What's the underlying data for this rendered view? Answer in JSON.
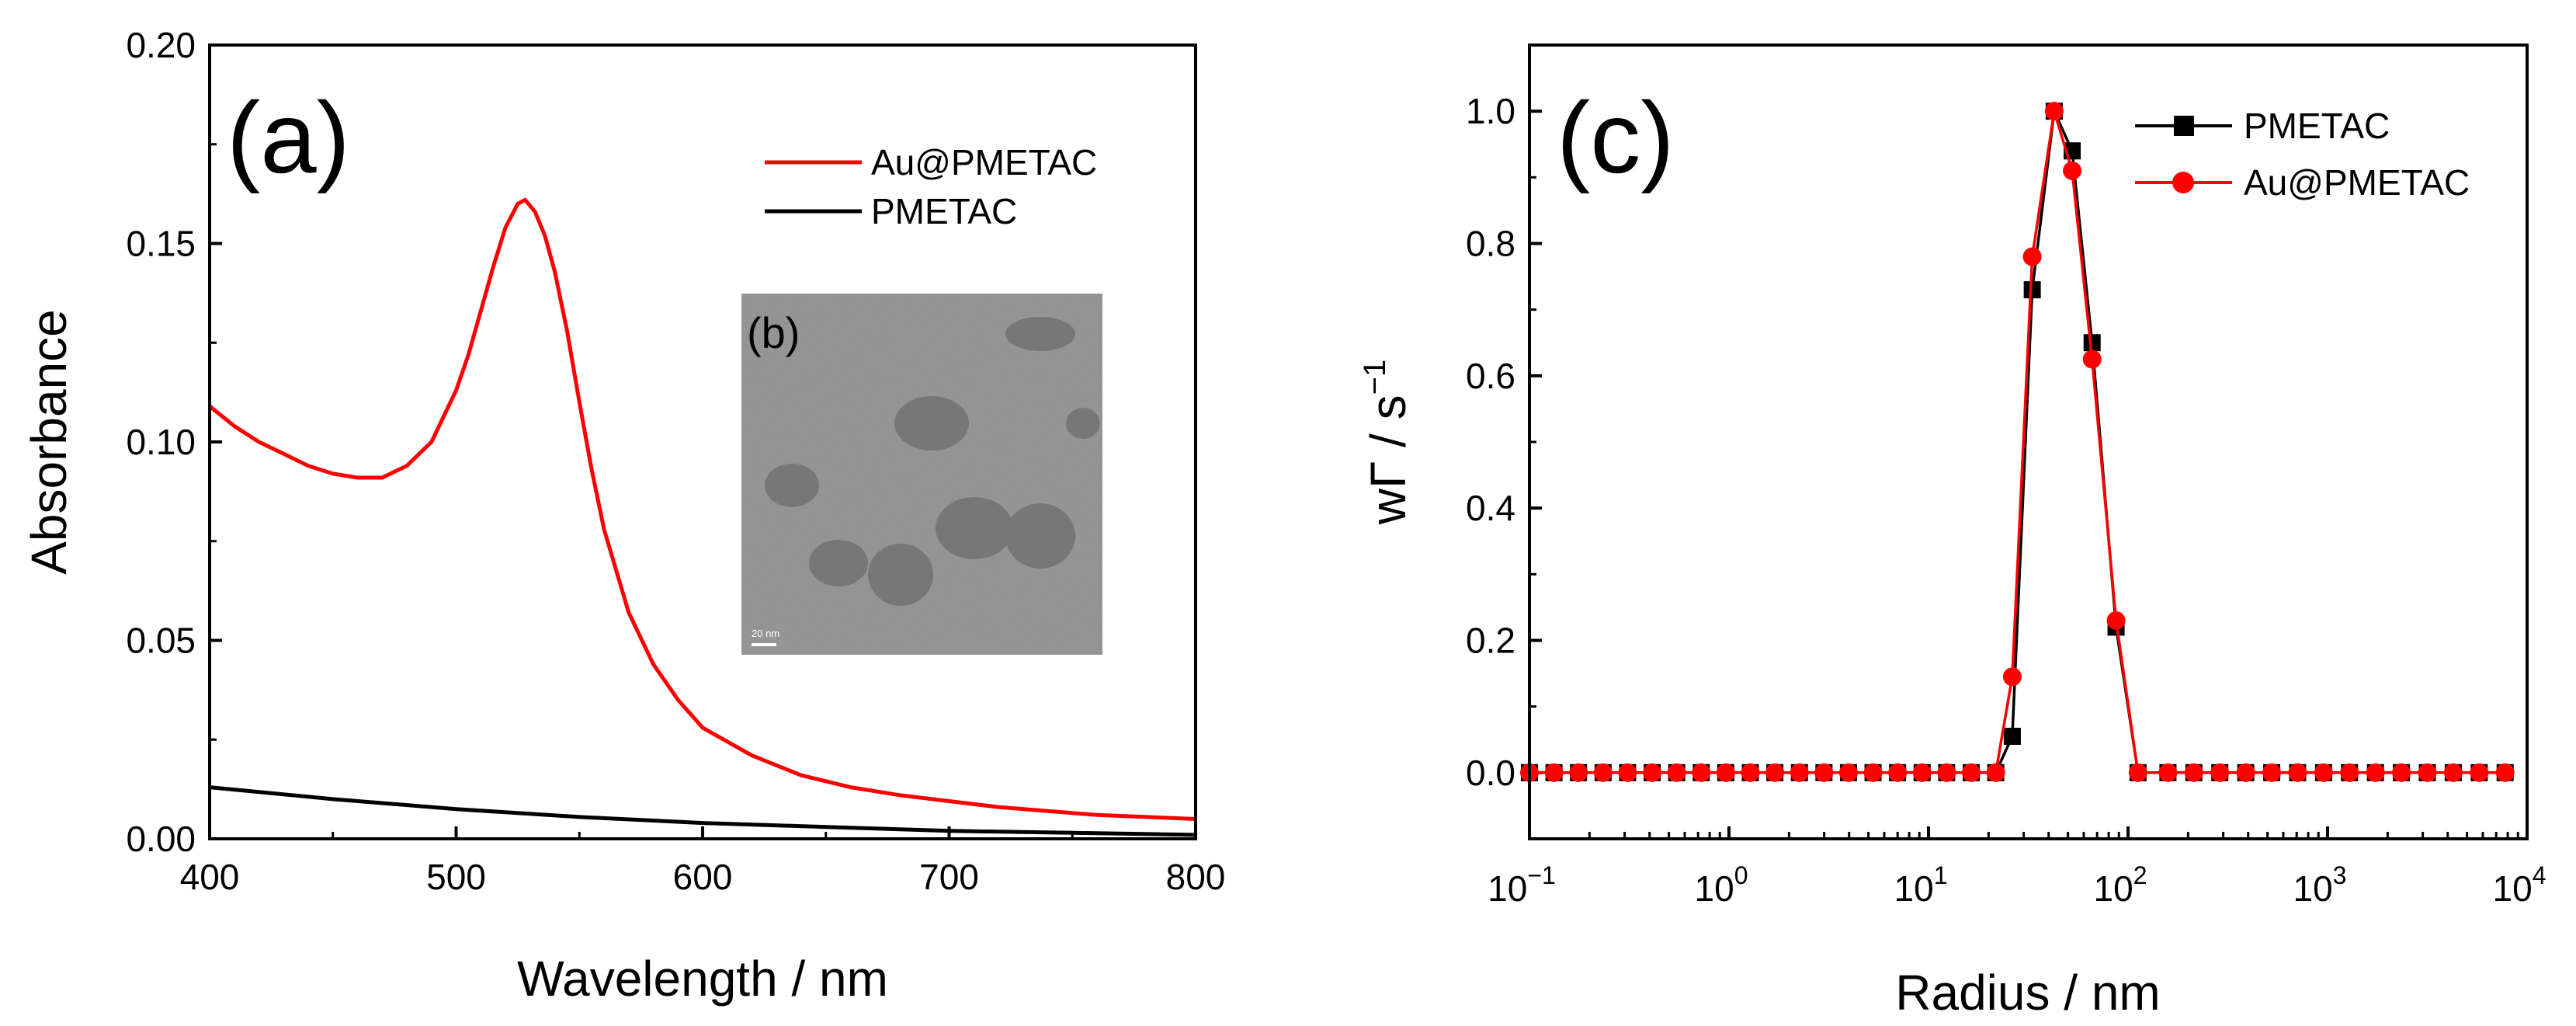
{
  "chart_data": [
    {
      "panel": "(a)",
      "type": "line",
      "xlabel": "Wavelength / nm",
      "ylabel": "Absorbance",
      "xlim": [
        400,
        800
      ],
      "ylim": [
        0,
        0.2
      ],
      "xticks": [
        400,
        500,
        600,
        700,
        800
      ],
      "xtick_labels": [
        "400",
        "500",
        "600",
        "700",
        "800"
      ],
      "yticks": [
        0,
        0.05,
        0.1,
        0.15,
        0.2
      ],
      "ytick_labels": [
        "0.00",
        "0.05",
        "0.10",
        "0.15",
        "0.20"
      ],
      "legend_position": "top-right",
      "series": [
        {
          "name": "Au@PMETAC",
          "color": "#ff0000",
          "x": [
            400,
            410,
            420,
            430,
            440,
            450,
            460,
            470,
            480,
            490,
            500,
            505,
            510,
            515,
            520,
            525,
            528,
            532,
            536,
            540,
            545,
            550,
            555,
            560,
            570,
            580,
            590,
            600,
            620,
            640,
            660,
            680,
            700,
            720,
            740,
            760,
            780,
            800
          ],
          "y": [
            0.109,
            0.104,
            0.1,
            0.097,
            0.094,
            0.092,
            0.091,
            0.091,
            0.094,
            0.1,
            0.113,
            0.122,
            0.133,
            0.144,
            0.154,
            0.16,
            0.161,
            0.158,
            0.152,
            0.143,
            0.128,
            0.11,
            0.093,
            0.078,
            0.057,
            0.044,
            0.035,
            0.028,
            0.021,
            0.016,
            0.013,
            0.011,
            0.0095,
            0.008,
            0.007,
            0.006,
            0.0055,
            0.005
          ]
        },
        {
          "name": "PMETAC",
          "color": "#000000",
          "x": [
            400,
            450,
            500,
            550,
            600,
            650,
            700,
            750,
            800
          ],
          "y": [
            0.013,
            0.01,
            0.0075,
            0.0055,
            0.004,
            0.003,
            0.002,
            0.0015,
            0.001
          ]
        }
      ],
      "inset": {
        "label": "(b)",
        "description": "TEM image",
        "scale_bar_text": "20 nm"
      }
    },
    {
      "panel": "(c)",
      "type": "line",
      "xscale": "log",
      "xlabel": "Radius / nm",
      "ylabel": "wΓ / s",
      "ylabel_superscript": "−1",
      "xlim": [
        0.1,
        10000
      ],
      "ylim": [
        -0.1,
        1.1
      ],
      "xtick_exponents": [
        "−1",
        "0",
        "1",
        "2",
        "3",
        "4"
      ],
      "yticks": [
        0,
        0.2,
        0.4,
        0.6,
        0.8,
        1.0
      ],
      "ytick_labels": [
        "0.0",
        "0.2",
        "0.4",
        "0.6",
        "0.8",
        "1.0"
      ],
      "legend_position": "top-right",
      "series": [
        {
          "name": "PMETAC",
          "color": "#000000",
          "marker": "square",
          "x_log10": [
            -1.0,
            -0.877,
            -0.754,
            -0.631,
            -0.508,
            -0.385,
            -0.262,
            -0.139,
            -0.016,
            0.107,
            0.23,
            0.353,
            0.476,
            0.599,
            0.722,
            0.845,
            0.968,
            1.091,
            1.214,
            1.337,
            1.42,
            1.52,
            1.63,
            1.72,
            1.82,
            1.94,
            2.05,
            2.2,
            2.33,
            2.46,
            2.59,
            2.72,
            2.85,
            2.98,
            3.11,
            3.24,
            3.37,
            3.5,
            3.63,
            3.76,
            3.89
          ],
          "y": [
            0,
            0,
            0,
            0,
            0,
            0,
            0,
            0,
            0,
            0,
            0,
            0,
            0,
            0,
            0,
            0,
            0,
            0,
            0,
            0,
            0.055,
            0.73,
            1.0,
            0.94,
            0.65,
            0.22,
            0,
            0,
            0,
            0,
            0,
            0,
            0,
            0,
            0,
            0,
            0,
            0,
            0,
            0,
            0
          ]
        },
        {
          "name": "Au@PMETAC",
          "color": "#ff0000",
          "marker": "circle",
          "x_log10": [
            -1.0,
            -0.877,
            -0.754,
            -0.631,
            -0.508,
            -0.385,
            -0.262,
            -0.139,
            -0.016,
            0.107,
            0.23,
            0.353,
            0.476,
            0.599,
            0.722,
            0.845,
            0.968,
            1.091,
            1.214,
            1.337,
            1.42,
            1.52,
            1.63,
            1.72,
            1.82,
            1.94,
            2.05,
            2.2,
            2.33,
            2.46,
            2.59,
            2.72,
            2.85,
            2.98,
            3.11,
            3.24,
            3.37,
            3.5,
            3.63,
            3.76,
            3.89
          ],
          "y": [
            0,
            0,
            0,
            0,
            0,
            0,
            0,
            0,
            0,
            0,
            0,
            0,
            0,
            0,
            0,
            0,
            0,
            0,
            0,
            0,
            0.145,
            0.78,
            1.0,
            0.91,
            0.625,
            0.23,
            0,
            0,
            0,
            0,
            0,
            0,
            0,
            0,
            0,
            0,
            0,
            0,
            0,
            0,
            0
          ]
        }
      ]
    }
  ]
}
